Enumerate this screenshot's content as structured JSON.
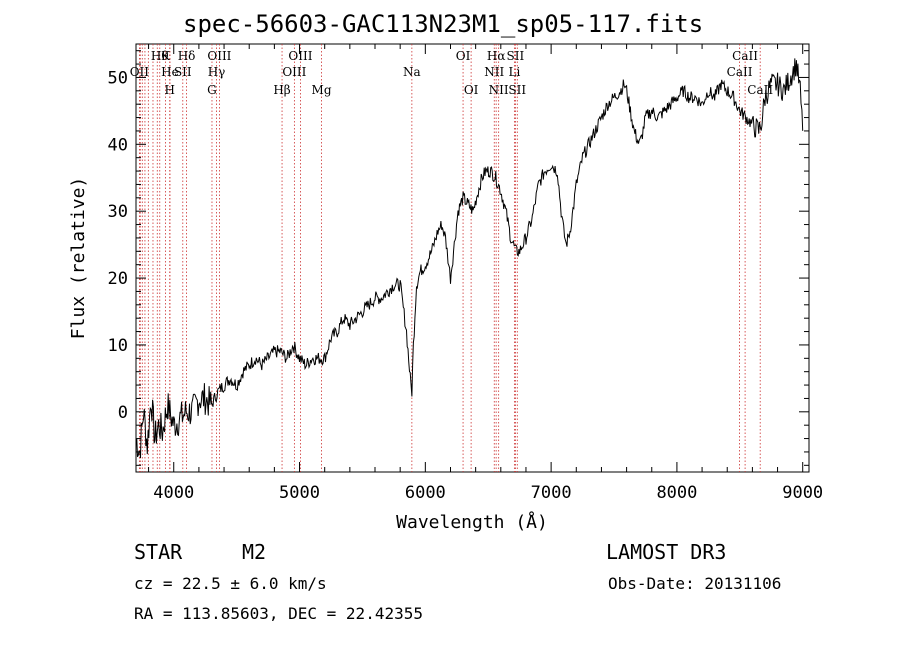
{
  "header": {
    "title": "spec-56603-GAC113N23M1_sp05-117.fits"
  },
  "info": {
    "class_label": "STAR",
    "subclass": "M2",
    "survey": "LAMOST DR3",
    "redshift": "cz = 22.5 ± 6.0 km/s",
    "obs_date": "Obs-Date: 20131106",
    "coords": "RA = 113.85603, DEC =  22.42355"
  },
  "colors": {
    "line": "#000000",
    "marker": "#cc3333",
    "marker_text": "#000000"
  },
  "chart_data": {
    "type": "line",
    "title": "spec-56603-GAC113N23M1_sp05-117.fits",
    "xlabel": "Wavelength (Å)",
    "ylabel": "Flux (relative)",
    "xlim": [
      3700,
      9050
    ],
    "ylim": [
      -9,
      55
    ],
    "xticks": [
      4000,
      5000,
      6000,
      7000,
      8000,
      9000
    ],
    "yticks": [
      0,
      10,
      20,
      30,
      40,
      50
    ],
    "series": [
      {
        "name": "flux",
        "x": [
          3700,
          3730,
          3760,
          3790,
          3820,
          3850,
          3880,
          3910,
          3950,
          4000,
          4050,
          4100,
          4150,
          4200,
          4250,
          4300,
          4350,
          4400,
          4450,
          4500,
          4550,
          4600,
          4650,
          4700,
          4750,
          4800,
          4850,
          4900,
          4950,
          5000,
          5050,
          5100,
          5150,
          5200,
          5250,
          5300,
          5350,
          5400,
          5450,
          5500,
          5550,
          5600,
          5650,
          5700,
          5750,
          5800,
          5850,
          5880,
          5893,
          5905,
          5930,
          5960,
          6000,
          6050,
          6100,
          6130,
          6160,
          6180,
          6200,
          6230,
          6260,
          6300,
          6340,
          6380,
          6420,
          6450,
          6480,
          6520,
          6560,
          6600,
          6640,
          6680,
          6700,
          6720,
          6750,
          6800,
          6850,
          6900,
          6950,
          7000,
          7050,
          7080,
          7100,
          7120,
          7150,
          7180,
          7200,
          7250,
          7300,
          7350,
          7400,
          7450,
          7500,
          7550,
          7580,
          7600,
          7630,
          7660,
          7700,
          7720,
          7750,
          7800,
          7850,
          7900,
          7950,
          8000,
          8050,
          8100,
          8150,
          8200,
          8250,
          8300,
          8350,
          8400,
          8450,
          8500,
          8550,
          8600,
          8650,
          8670,
          8700,
          8750,
          8800,
          8850,
          8900,
          8950,
          8980,
          9000
        ],
        "y": [
          -4,
          -6,
          0,
          -5,
          2,
          -4,
          -2,
          -3,
          1,
          -2,
          -1,
          0,
          0,
          2,
          2,
          1,
          3,
          4,
          5,
          4,
          6,
          7,
          8,
          7,
          8,
          9,
          9,
          8,
          10,
          8,
          7,
          8,
          8,
          8,
          11,
          12,
          14,
          13,
          14,
          15,
          16,
          17,
          17,
          18,
          19,
          19,
          12,
          5,
          3,
          10,
          19,
          21,
          22,
          24,
          27,
          28,
          26,
          23,
          20,
          25,
          30,
          32,
          31,
          30,
          33,
          35,
          36,
          36,
          35,
          33,
          30,
          26,
          25,
          24,
          24,
          26,
          29,
          34,
          36,
          37,
          36,
          30,
          27,
          25,
          27,
          31,
          34,
          38,
          40,
          42,
          44,
          46,
          47,
          48,
          49,
          48,
          45,
          42,
          40,
          41,
          44,
          45,
          44,
          45,
          46,
          47,
          48,
          47,
          47,
          46,
          48,
          47,
          49,
          48,
          47,
          45,
          44,
          43,
          42,
          43,
          47,
          49,
          49,
          48,
          50,
          52,
          48,
          42
        ]
      }
    ],
    "lines": [
      {
        "wl": 3727,
        "label": "OII",
        "row": 1
      },
      {
        "wl": 3734,
        "label": "",
        "row": 2
      },
      {
        "wl": 3750,
        "label": "",
        "row": 2
      },
      {
        "wl": 3771,
        "label": "",
        "row": 2
      },
      {
        "wl": 3798,
        "label": "",
        "row": 2
      },
      {
        "wl": 3835,
        "label": "",
        "row": 2
      },
      {
        "wl": 3869,
        "label": "",
        "row": 2
      },
      {
        "wl": 3889,
        "label": "Hθ",
        "row": 0
      },
      {
        "wl": 3934,
        "label": "K",
        "row": 0
      },
      {
        "wl": 3968,
        "label": "H",
        "row": 2
      },
      {
        "wl": 3970,
        "label": "He",
        "row": 1
      },
      {
        "wl": 4072,
        "label": "SII",
        "row": 1
      },
      {
        "wl": 4102,
        "label": "Hδ",
        "row": 0
      },
      {
        "wl": 4304,
        "label": "G",
        "row": 2
      },
      {
        "wl": 4340,
        "label": "Hγ",
        "row": 1
      },
      {
        "wl": 4363,
        "label": "OIII",
        "row": 0
      },
      {
        "wl": 4861,
        "label": "Hβ",
        "row": 2
      },
      {
        "wl": 4959,
        "label": "OIII",
        "row": 1
      },
      {
        "wl": 5007,
        "label": "OIII",
        "row": 0
      },
      {
        "wl": 5175,
        "label": "Mg",
        "row": 2
      },
      {
        "wl": 5893,
        "label": "Na",
        "row": 1
      },
      {
        "wl": 6300,
        "label": "OI",
        "row": 0
      },
      {
        "wl": 6364,
        "label": "OI",
        "row": 2
      },
      {
        "wl": 6548,
        "label": "NII",
        "row": 1
      },
      {
        "wl": 6563,
        "label": "Hα",
        "row": 0
      },
      {
        "wl": 6583,
        "label": "NII",
        "row": 2
      },
      {
        "wl": 6708,
        "label": "Li",
        "row": 1
      },
      {
        "wl": 6716,
        "label": "SII",
        "row": 0
      },
      {
        "wl": 6731,
        "label": "SII",
        "row": 2
      },
      {
        "wl": 8498,
        "label": "CaII",
        "row": 1
      },
      {
        "wl": 8542,
        "label": "CaII",
        "row": 0
      },
      {
        "wl": 8662,
        "label": "CaII",
        "row": 2
      }
    ]
  }
}
